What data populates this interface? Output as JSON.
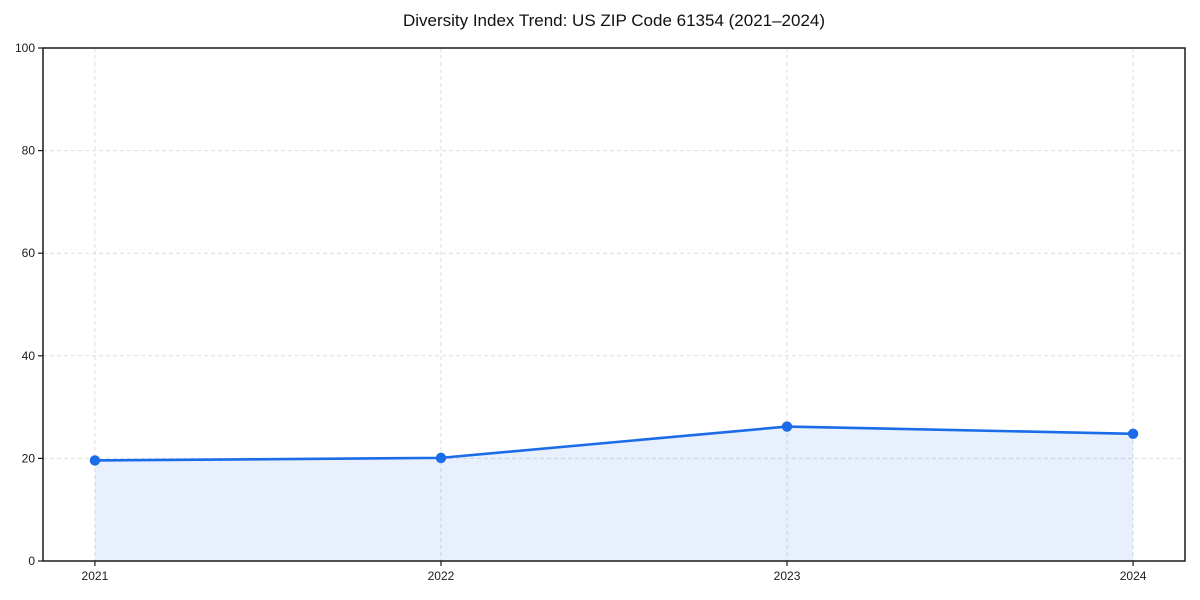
{
  "chart_data": {
    "type": "area",
    "title": "Diversity Index Trend: US ZIP Code 61354 (2021–2024)",
    "xlabel": "",
    "ylabel": "",
    "x": [
      2021,
      2022,
      2023,
      2024
    ],
    "series": [
      {
        "name": "Diversity Index",
        "values": [
          19.6,
          20.1,
          26.2,
          24.8
        ]
      }
    ],
    "ylim": [
      0,
      100
    ],
    "yticks": [
      0,
      20,
      40,
      60,
      80,
      100
    ],
    "xticks": [
      2021,
      2022,
      2023,
      2024
    ],
    "grid": true,
    "grid_style": "dashed",
    "legend_position": "none",
    "colors": {
      "line": "#1a6ce8",
      "marker": "#1a6ce8",
      "fill": "rgba(26,108,232,0.10)",
      "grid": "#dedede",
      "spine": "#1a1a1a",
      "tick_text": "#1a1a1a",
      "title_text": "#111111",
      "background": "#ffffff"
    }
  }
}
